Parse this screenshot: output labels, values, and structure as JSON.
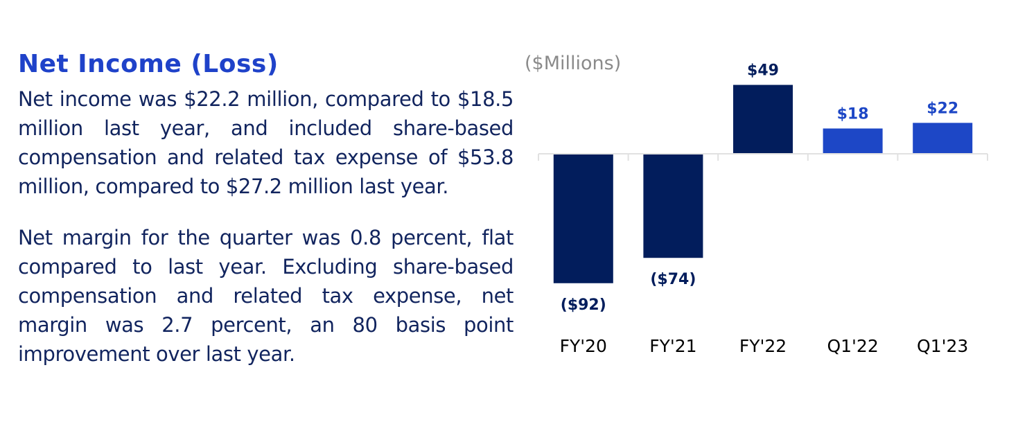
{
  "colors": {
    "accent": "#1f42c9",
    "text": "#11245e",
    "bar_dark": "#021d5c",
    "bar_light": "#1d47c6",
    "unit_label": "#8a8a8a",
    "axis": "#e1e1e1"
  },
  "text_panel": {
    "title": "Net Income (Loss)",
    "paragraphs": [
      "Net income was $22.2 million, compared to $18.5 million last year, and included share-based compensation and related tax expense of $53.8 million, compared to $27.2 million last year.",
      "Net margin for the quarter was 0.8 percent, flat compared to last year. Excluding share-based compensation and related tax expense, net margin was 2.7 percent, an 80 basis point improvement over last year."
    ]
  },
  "chart_data": {
    "type": "bar",
    "title": "",
    "ylabel": "($Millions)",
    "xlabel": "",
    "categories": [
      "FY'20",
      "FY'21",
      "FY'22",
      "Q1'22",
      "Q1'23"
    ],
    "values": [
      -92,
      -74,
      49,
      18,
      22
    ],
    "data_labels": [
      "($92)",
      "($74)",
      "$49",
      "$18",
      "$22"
    ],
    "bar_colors": [
      "#021d5c",
      "#021d5c",
      "#021d5c",
      "#1d47c6",
      "#1d47c6"
    ],
    "label_colors": [
      "#021d5c",
      "#021d5c",
      "#021d5c",
      "#1d47c6",
      "#1d47c6"
    ],
    "ylim": [
      -100,
      50
    ],
    "grid": false,
    "legend": "none"
  }
}
